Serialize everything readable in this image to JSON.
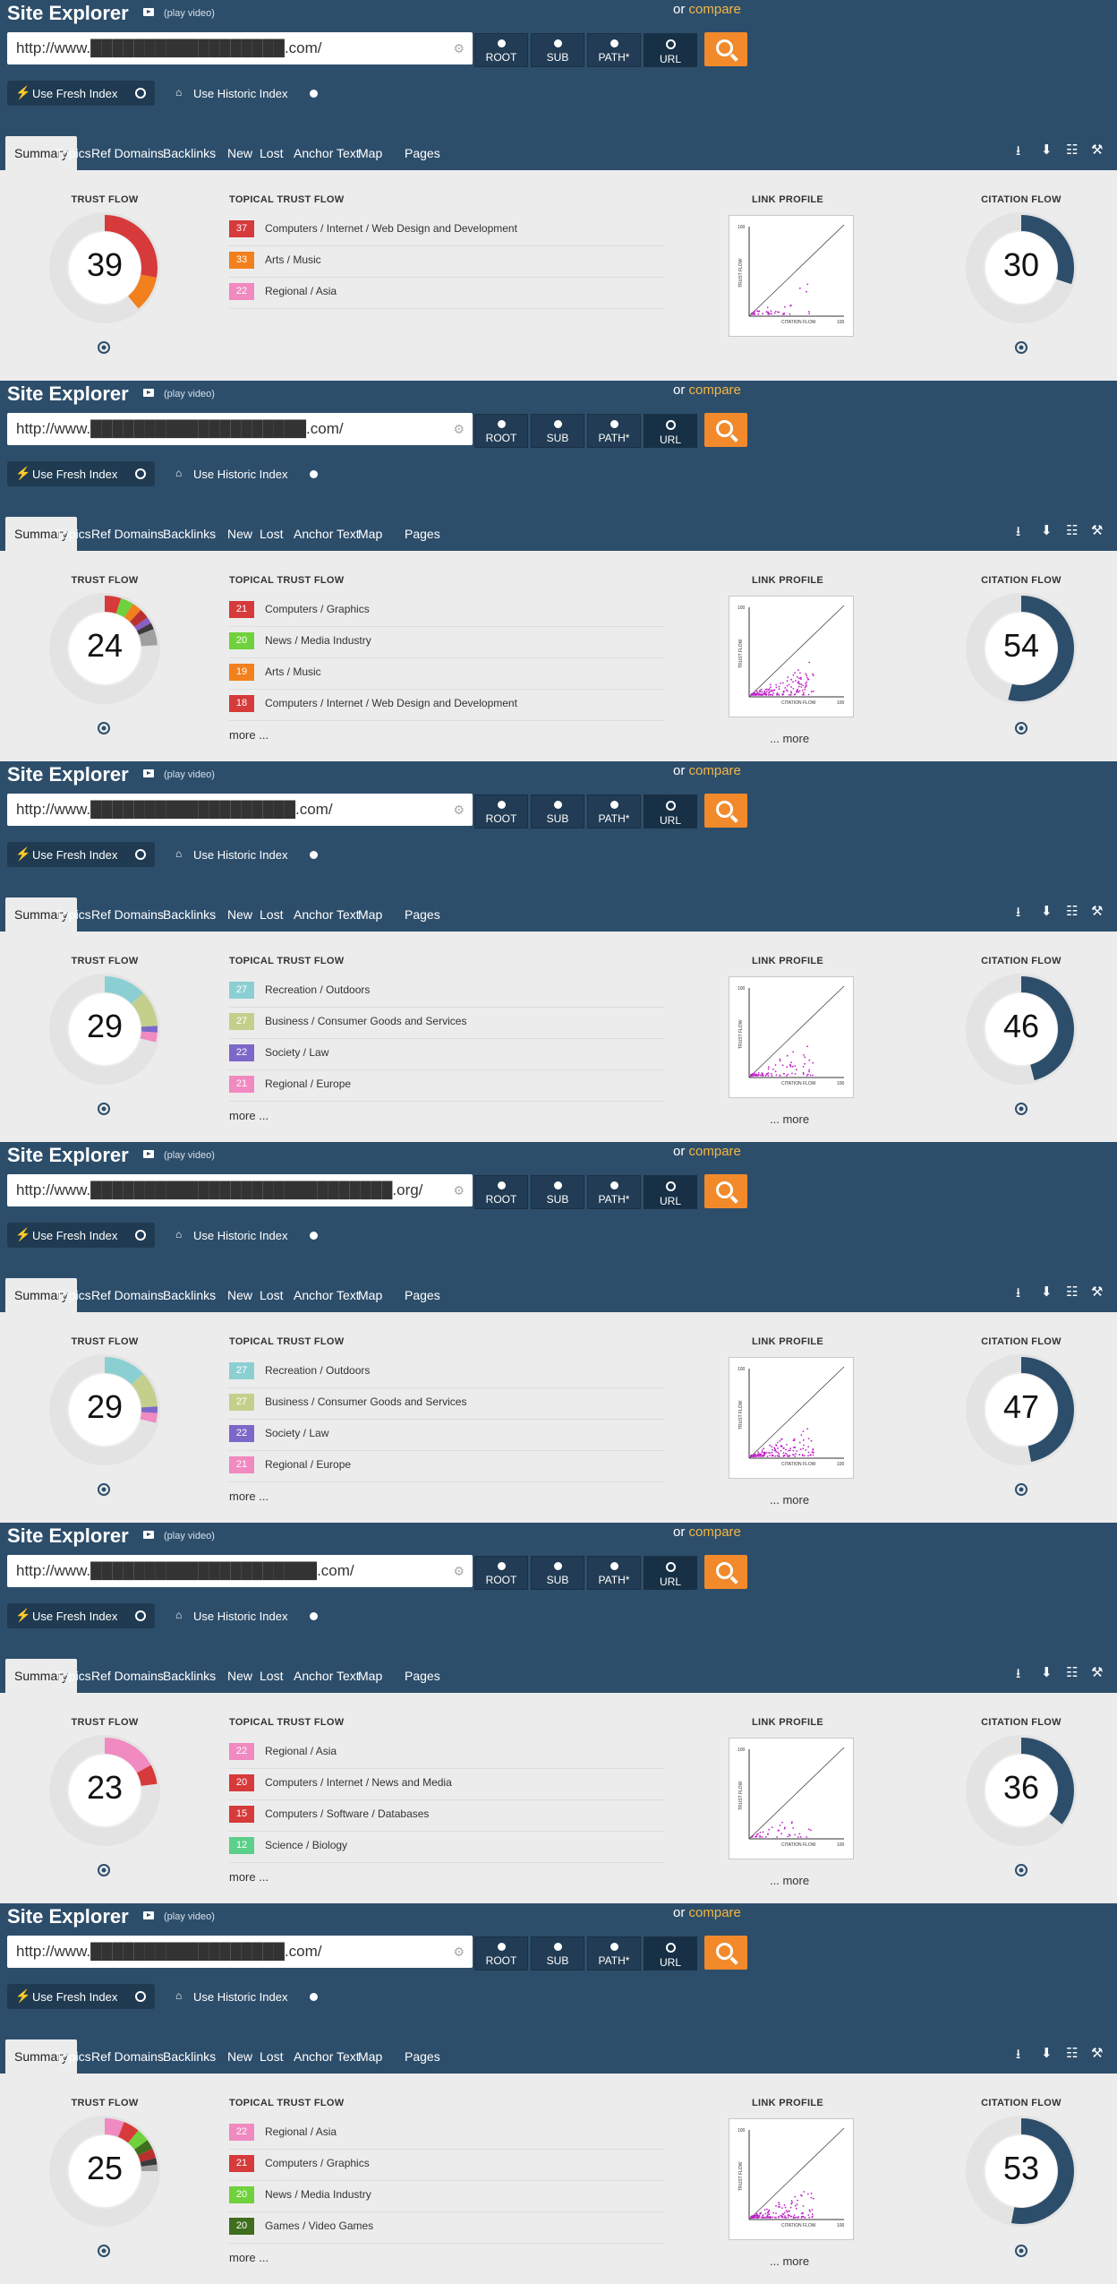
{
  "colors": {
    "header_bg": "#2d4e6b",
    "accent_orange": "#f28a2b",
    "compare_link": "#f5b642",
    "citation_flow": "#2d4e6b",
    "track": "#e3e3e3"
  },
  "panels": [
    {
      "header": {
        "title": "Site Explorer",
        "video_label": "(play video)",
        "compare_prefix": "or",
        "compare_link": "compare"
      },
      "url": "http://www.██████████████████.com/",
      "scope_buttons": [
        "ROOT",
        "SUB",
        "PATH*",
        "URL"
      ],
      "selected_scope": "URL",
      "index_options": {
        "fresh": "Use Fresh Index",
        "historic": "Use Historic Index"
      },
      "tabs": [
        "Summary",
        "Topics",
        "Ref Domains",
        "Backlinks",
        "New",
        "Lost",
        "Anchor Text",
        "Map",
        "Pages"
      ],
      "trust_flow": {
        "label": "TRUST FLOW",
        "value": 39,
        "segments": [
          {
            "value": 28,
            "color": "#d63a3a"
          },
          {
            "value": 11,
            "color": "#f2801c"
          }
        ]
      },
      "topical": {
        "label": "TOPICAL TRUST FLOW",
        "items": [
          {
            "value": 37,
            "color": "#d63a3a",
            "name": "Computers / Internet / Web Design and Development"
          },
          {
            "value": 33,
            "color": "#f2801c",
            "name": "Arts / Music"
          },
          {
            "value": 22,
            "color": "#f08ac0",
            "name": "Regional / Asia"
          }
        ],
        "more": ""
      },
      "link_profile": {
        "label": "LINK PROFILE",
        "more": "",
        "density": "low"
      },
      "citation_flow": {
        "label": "CITATION FLOW",
        "value": 30
      }
    },
    {
      "header": {
        "title": "Site Explorer",
        "video_label": "(play video)",
        "compare_prefix": "or",
        "compare_link": "compare"
      },
      "url": "http://www.████████████████████.com/",
      "scope_buttons": [
        "ROOT",
        "SUB",
        "PATH*",
        "URL"
      ],
      "selected_scope": "URL",
      "index_options": {
        "fresh": "Use Fresh Index",
        "historic": "Use Historic Index"
      },
      "tabs": [
        "Summary",
        "Topics",
        "Ref Domains",
        "Backlinks",
        "New",
        "Lost",
        "Anchor Text",
        "Map",
        "Pages"
      ],
      "trust_flow": {
        "label": "TRUST FLOW",
        "value": 24,
        "segments": [
          {
            "value": 5,
            "color": "#d63a3a"
          },
          {
            "value": 4,
            "color": "#6fd13c"
          },
          {
            "value": 3,
            "color": "#f2801c"
          },
          {
            "value": 3,
            "color": "#b83030"
          },
          {
            "value": 2,
            "color": "#8a5fc4"
          },
          {
            "value": 2,
            "color": "#3a3a3a"
          },
          {
            "value": 5,
            "color": "#a0a0a0"
          }
        ]
      },
      "topical": {
        "label": "TOPICAL TRUST FLOW",
        "items": [
          {
            "value": 21,
            "color": "#d63a3a",
            "name": "Computers / Graphics"
          },
          {
            "value": 20,
            "color": "#6fd13c",
            "name": "News / Media Industry"
          },
          {
            "value": 19,
            "color": "#f2801c",
            "name": "Arts / Music"
          },
          {
            "value": 18,
            "color": "#d63a3a",
            "name": "Computers / Internet / Web Design and Development"
          }
        ],
        "more": "more ..."
      },
      "link_profile": {
        "label": "LINK PROFILE",
        "more": "... more",
        "density": "high"
      },
      "citation_flow": {
        "label": "CITATION FLOW",
        "value": 54
      }
    },
    {
      "header": {
        "title": "Site Explorer",
        "video_label": "(play video)",
        "compare_prefix": "or",
        "compare_link": "compare"
      },
      "url": "http://www.███████████████████.com/",
      "scope_buttons": [
        "ROOT",
        "SUB",
        "PATH*",
        "URL"
      ],
      "selected_scope": "URL",
      "index_options": {
        "fresh": "Use Fresh Index",
        "historic": "Use Historic Index"
      },
      "tabs": [
        "Summary",
        "Topics",
        "Ref Domains",
        "Backlinks",
        "New",
        "Lost",
        "Anchor Text",
        "Map",
        "Pages"
      ],
      "trust_flow": {
        "label": "TRUST FLOW",
        "value": 29,
        "segments": [
          {
            "value": 13,
            "color": "#8ccfd3"
          },
          {
            "value": 11,
            "color": "#c5cf8c"
          },
          {
            "value": 2,
            "color": "#7b68c9"
          },
          {
            "value": 3,
            "color": "#f08ac0"
          }
        ]
      },
      "topical": {
        "label": "TOPICAL TRUST FLOW",
        "items": [
          {
            "value": 27,
            "color": "#8ccfd3",
            "name": "Recreation / Outdoors"
          },
          {
            "value": 27,
            "color": "#c5cf8c",
            "name": "Business / Consumer Goods and Services"
          },
          {
            "value": 22,
            "color": "#7b68c9",
            "name": "Society / Law"
          },
          {
            "value": 21,
            "color": "#f08ac0",
            "name": "Regional / Europe"
          }
        ],
        "more": "more ..."
      },
      "link_profile": {
        "label": "LINK PROFILE",
        "more": "... more",
        "density": "medium"
      },
      "citation_flow": {
        "label": "CITATION FLOW",
        "value": 46
      }
    },
    {
      "header": {
        "title": "Site Explorer",
        "video_label": "(play video)",
        "compare_prefix": "or",
        "compare_link": "compare"
      },
      "url": "http://www.████████████████████████████.org/",
      "scope_buttons": [
        "ROOT",
        "SUB",
        "PATH*",
        "URL"
      ],
      "selected_scope": "URL",
      "index_options": {
        "fresh": "Use Fresh Index",
        "historic": "Use Historic Index"
      },
      "tabs": [
        "Summary",
        "Topics",
        "Ref Domains",
        "Backlinks",
        "New",
        "Lost",
        "Anchor Text",
        "Map",
        "Pages"
      ],
      "trust_flow": {
        "label": "TRUST FLOW",
        "value": 29,
        "segments": [
          {
            "value": 13,
            "color": "#8ccfd3"
          },
          {
            "value": 11,
            "color": "#c5cf8c"
          },
          {
            "value": 2,
            "color": "#7b68c9"
          },
          {
            "value": 3,
            "color": "#f08ac0"
          }
        ]
      },
      "topical": {
        "label": "TOPICAL TRUST FLOW",
        "items": [
          {
            "value": 27,
            "color": "#8ccfd3",
            "name": "Recreation / Outdoors"
          },
          {
            "value": 27,
            "color": "#c5cf8c",
            "name": "Business / Consumer Goods and Services"
          },
          {
            "value": 22,
            "color": "#7b68c9",
            "name": "Society / Law"
          },
          {
            "value": 21,
            "color": "#f08ac0",
            "name": "Regional / Europe"
          }
        ],
        "more": "more ..."
      },
      "link_profile": {
        "label": "LINK PROFILE",
        "more": "... more",
        "density": "high"
      },
      "citation_flow": {
        "label": "CITATION FLOW",
        "value": 47
      }
    },
    {
      "header": {
        "title": "Site Explorer",
        "video_label": "(play video)",
        "compare_prefix": "or",
        "compare_link": "compare"
      },
      "url": "http://www.█████████████████████.com/",
      "scope_buttons": [
        "ROOT",
        "SUB",
        "PATH*",
        "URL"
      ],
      "selected_scope": "URL",
      "index_options": {
        "fresh": "Use Fresh Index",
        "historic": "Use Historic Index"
      },
      "tabs": [
        "Summary",
        "Topics",
        "Ref Domains",
        "Backlinks",
        "New",
        "Lost",
        "Anchor Text",
        "Map",
        "Pages"
      ],
      "trust_flow": {
        "label": "TRUST FLOW",
        "value": 23,
        "segments": [
          {
            "value": 17,
            "color": "#f08ac0"
          },
          {
            "value": 6,
            "color": "#d63a3a"
          }
        ]
      },
      "topical": {
        "label": "TOPICAL TRUST FLOW",
        "items": [
          {
            "value": 22,
            "color": "#f08ac0",
            "name": "Regional / Asia"
          },
          {
            "value": 20,
            "color": "#d63a3a",
            "name": "Computers / Internet / News and Media"
          },
          {
            "value": 15,
            "color": "#d63a3a",
            "name": "Computers / Software / Databases"
          },
          {
            "value": 12,
            "color": "#5ccf8a",
            "name": "Science / Biology"
          }
        ],
        "more": "more ..."
      },
      "link_profile": {
        "label": "LINK PROFILE",
        "more": "... more",
        "density": "low"
      },
      "citation_flow": {
        "label": "CITATION FLOW",
        "value": 36
      }
    },
    {
      "header": {
        "title": "Site Explorer",
        "video_label": "(play video)",
        "compare_prefix": "or",
        "compare_link": "compare"
      },
      "url": "http://www.██████████████████.com/",
      "scope_buttons": [
        "ROOT",
        "SUB",
        "PATH*",
        "URL"
      ],
      "selected_scope": "URL",
      "index_options": {
        "fresh": "Use Fresh Index",
        "historic": "Use Historic Index"
      },
      "tabs": [
        "Summary",
        "Topics",
        "Ref Domains",
        "Backlinks",
        "New",
        "Lost",
        "Anchor Text",
        "Map",
        "Pages"
      ],
      "trust_flow": {
        "label": "TRUST FLOW",
        "value": 25,
        "segments": [
          {
            "value": 6,
            "color": "#f08ac0"
          },
          {
            "value": 5,
            "color": "#d63a3a"
          },
          {
            "value": 4,
            "color": "#6fd13c"
          },
          {
            "value": 3,
            "color": "#3f6e1e"
          },
          {
            "value": 3,
            "color": "#b83030"
          },
          {
            "value": 2,
            "color": "#3a3a3a"
          },
          {
            "value": 2,
            "color": "#a0a0a0"
          }
        ]
      },
      "topical": {
        "label": "TOPICAL TRUST FLOW",
        "items": [
          {
            "value": 22,
            "color": "#f08ac0",
            "name": "Regional / Asia"
          },
          {
            "value": 21,
            "color": "#d63a3a",
            "name": "Computers / Graphics"
          },
          {
            "value": 20,
            "color": "#6fd13c",
            "name": "News / Media Industry"
          },
          {
            "value": 20,
            "color": "#3f6e1e",
            "name": "Games / Video Games"
          }
        ],
        "more": "more ..."
      },
      "link_profile": {
        "label": "LINK PROFILE",
        "more": "... more",
        "density": "high"
      },
      "citation_flow": {
        "label": "CITATION FLOW",
        "value": 53
      }
    }
  ]
}
